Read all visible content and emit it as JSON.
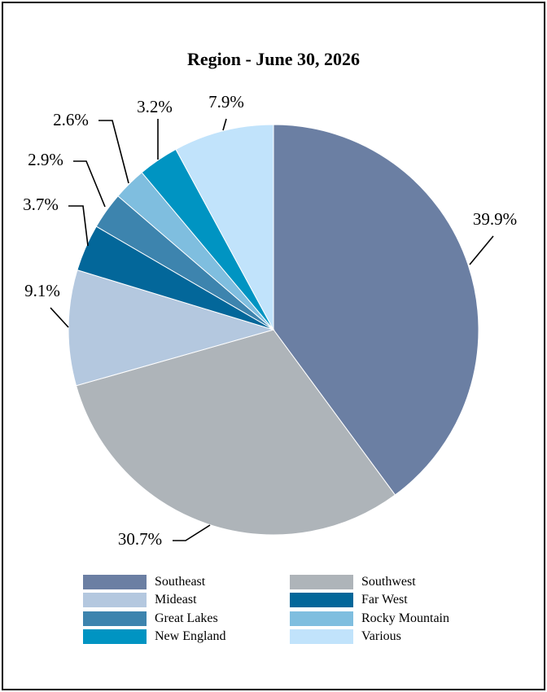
{
  "chart_data": {
    "type": "pie",
    "title": "Region - June 30, 2026",
    "categories": [
      "Southeast",
      "Southwest",
      "Mideast",
      "Far West",
      "Great Lakes",
      "Rocky Mountain",
      "New England",
      "Various"
    ],
    "values": [
      39.9,
      30.7,
      9.1,
      3.7,
      2.9,
      2.6,
      3.2,
      7.9
    ],
    "value_labels": [
      "39.9%",
      "30.7%",
      "9.1%",
      "3.7%",
      "2.9%",
      "2.6%",
      "3.2%",
      "7.9%"
    ],
    "colors": [
      "#6b7fa3",
      "#aeb4b9",
      "#b4c8df",
      "#03679a",
      "#3d84ae",
      "#7fbedf",
      "#0094c2",
      "#c1e3fb"
    ],
    "legend": {
      "placement": "bottom",
      "columns": 2,
      "items": [
        {
          "label": "Southeast",
          "color": "#6b7fa3"
        },
        {
          "label": "Southwest",
          "color": "#aeb4b9"
        },
        {
          "label": "Mideast",
          "color": "#b4c8df"
        },
        {
          "label": "Far West",
          "color": "#03679a"
        },
        {
          "label": "Great Lakes",
          "color": "#3d84ae"
        },
        {
          "label": "Rocky Mountain",
          "color": "#7fbedf"
        },
        {
          "label": "New England",
          "color": "#0094c2"
        },
        {
          "label": "Various",
          "color": "#c1e3fb"
        }
      ]
    }
  }
}
